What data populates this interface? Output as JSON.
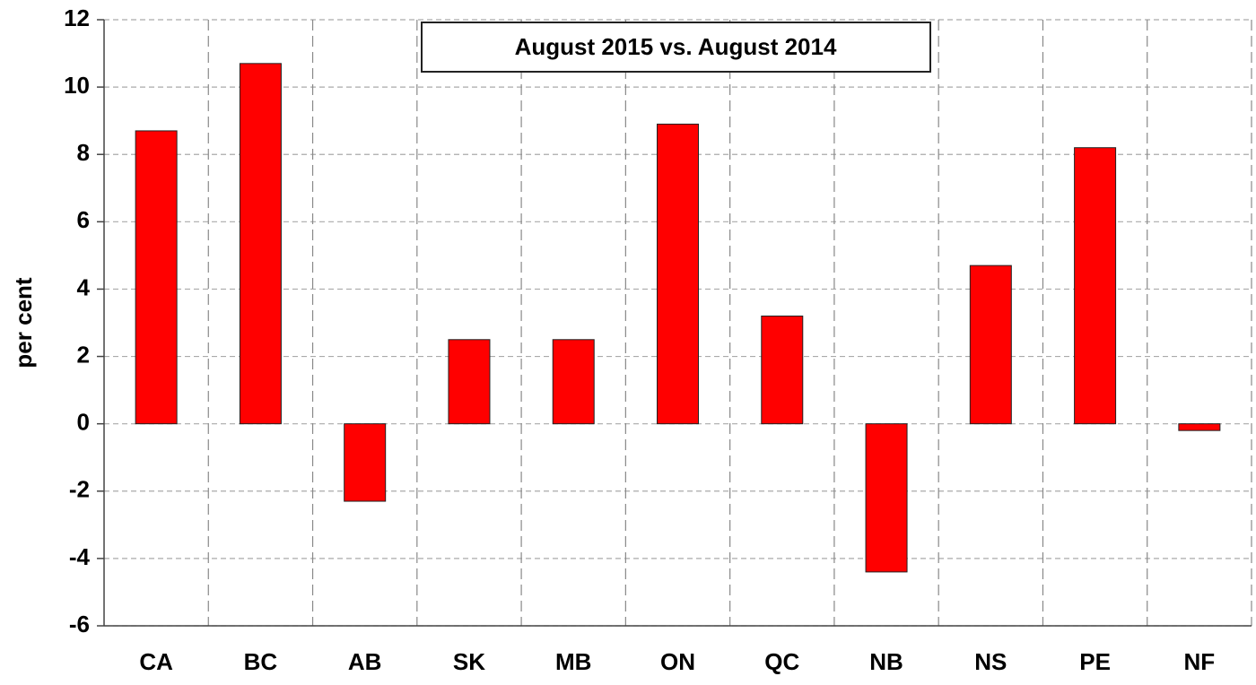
{
  "chart_data": {
    "type": "bar",
    "title": "August 2015 vs. August 2014",
    "y_label": "per cent",
    "categories": [
      "CA",
      "BC",
      "AB",
      "SK",
      "MB",
      "ON",
      "QC",
      "NB",
      "NS",
      "PE",
      "NF"
    ],
    "values": [
      8.7,
      10.7,
      -2.3,
      2.5,
      2.5,
      8.9,
      3.2,
      -4.4,
      4.7,
      8.2,
      -0.2
    ],
    "color": "#ff0000",
    "ylim": [
      -6,
      12
    ],
    "yticks": [
      -6,
      -4,
      -2,
      0,
      2,
      4,
      6,
      8,
      10,
      12
    ],
    "grid": true
  }
}
